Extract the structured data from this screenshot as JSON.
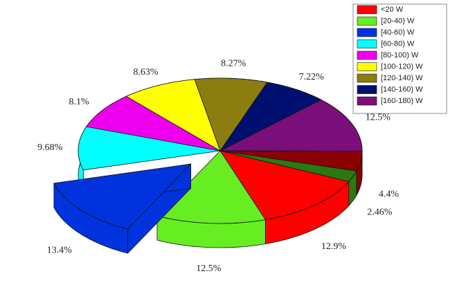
{
  "chart_data": {
    "type": "pie3d",
    "categories": [
      "<20 W",
      "[20-40) W",
      "[40-60) W",
      "[60-80) W",
      "[80-100) W",
      "[100-120) W",
      "[120-140) W",
      "[140-160) W",
      "[160-180) W",
      null,
      null
    ],
    "values": [
      12.9,
      12.5,
      13.4,
      9.68,
      8.1,
      8.63,
      8.27,
      7.22,
      12.5,
      4.4,
      2.46
    ],
    "value_labels": [
      "12.9%",
      "12.5%",
      "13.4%",
      "9.68%",
      "8.1%",
      "8.63%",
      "8.27%",
      "7.22%",
      "12.5%",
      "4.4%",
      "2.46%"
    ],
    "colors": [
      "#ff0000",
      "#66ee22",
      "#0033dd",
      "#00ffff",
      "#ee00ee",
      "#ffff00",
      "#8b7d10",
      "#001070",
      "#7a0f7a",
      "#8b0000",
      "#2a7a10"
    ],
    "exploded": [
      2
    ]
  }
}
